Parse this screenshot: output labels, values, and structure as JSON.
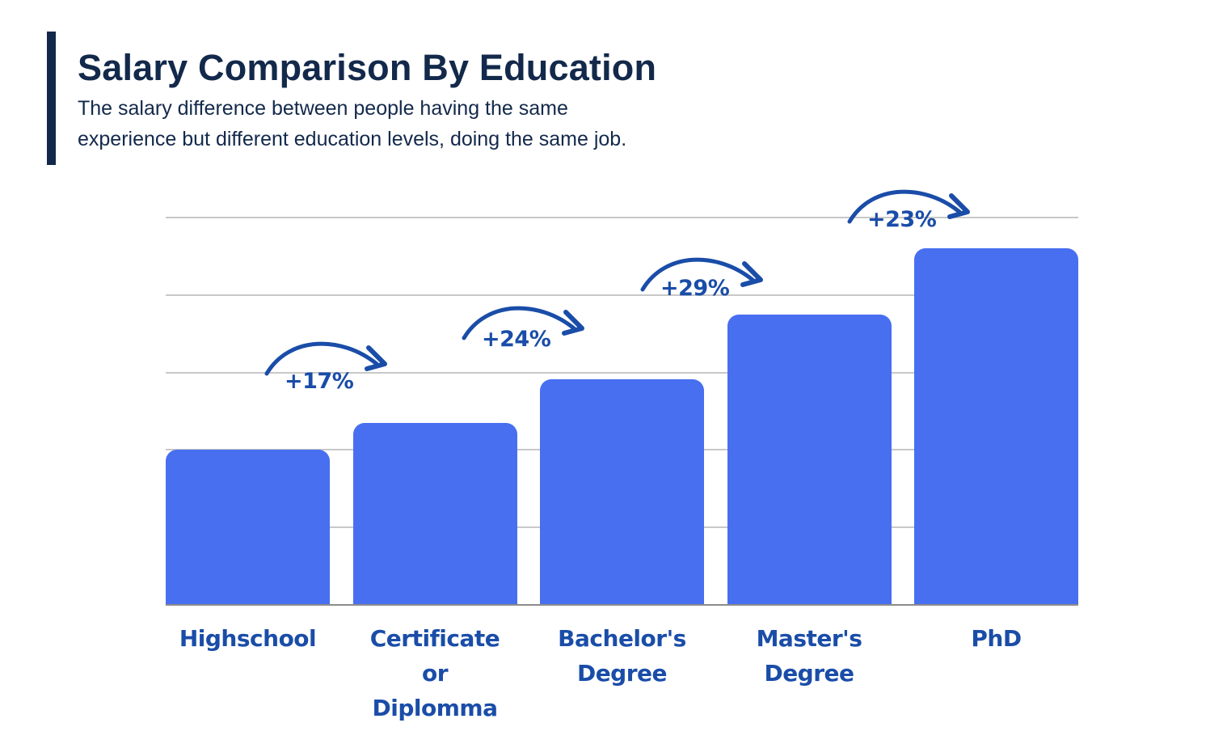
{
  "header": {
    "title": "Salary Comparison By Education",
    "subtitle_line1": "The salary difference between people having the same",
    "subtitle_line2": "experience but different education levels, doing the same job."
  },
  "colors": {
    "title": "#13294b",
    "bar": "#476ff0",
    "label": "#1a4da8",
    "grid": "#c8c8c8"
  },
  "chart_data": {
    "type": "bar",
    "title": "Salary Comparison By Education",
    "subtitle": "The salary difference between people having the same experience but different education levels, doing the same job.",
    "xlabel": "",
    "ylabel": "",
    "categories": [
      "Highschool",
      "Certificate or Diplomma",
      "Bachelor's Degree",
      "Master's Degree",
      "PhD"
    ],
    "values": [
      2.0,
      2.34,
      2.91,
      3.74,
      4.59
    ],
    "value_note": "Relative salary in gridline units (no axis tick labels shown); Highschool = 2.0",
    "ylim": [
      0,
      5
    ],
    "gridlines": [
      1,
      2,
      3,
      4,
      5
    ],
    "grid": true,
    "legend": null,
    "annotations": [
      {
        "from": "Highschool",
        "to": "Certificate or Diplomma",
        "text": "+17%"
      },
      {
        "from": "Certificate or Diplomma",
        "to": "Bachelor's Degree",
        "text": "+24%"
      },
      {
        "from": "Bachelor's Degree",
        "to": "Master's Degree",
        "text": "+29%"
      },
      {
        "from": "Master's Degree",
        "to": "PhD",
        "text": "+23%"
      }
    ]
  },
  "labels": [
    {
      "lines": [
        "Highschool"
      ]
    },
    {
      "lines": [
        "Certificate",
        "or",
        "Diplomma"
      ]
    },
    {
      "lines": [
        "Bachelor's",
        "Degree"
      ]
    },
    {
      "lines": [
        "Master's",
        "Degree"
      ]
    },
    {
      "lines": [
        "PhD"
      ]
    }
  ],
  "annotations": [
    {
      "text": "+17%"
    },
    {
      "text": "+24%"
    },
    {
      "text": "+29%"
    },
    {
      "text": "+23%"
    }
  ]
}
